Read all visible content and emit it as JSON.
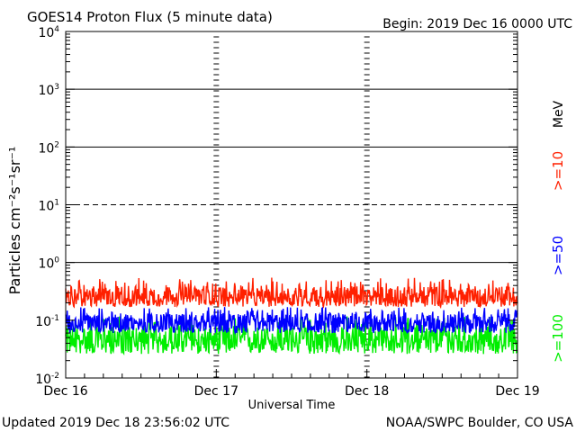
{
  "chart_data": {
    "type": "line",
    "title": "GOES14 Proton Flux (5 minute data)",
    "begin_label": "Begin: 2019 Dec 16 0000 UTC",
    "xlabel": "Universal Time",
    "ylabel": "Particles cm⁻²s⁻¹sr⁻¹",
    "y_scale": "log",
    "ylim": [
      0.01,
      10000
    ],
    "y_ticks": [
      {
        "value": 10000,
        "base": "10",
        "exp": "4"
      },
      {
        "value": 1000,
        "base": "10",
        "exp": "3"
      },
      {
        "value": 100,
        "base": "10",
        "exp": "2"
      },
      {
        "value": 10,
        "base": "10",
        "exp": "1"
      },
      {
        "value": 1,
        "base": "10",
        "exp": "0"
      },
      {
        "value": 0.1,
        "base": "10",
        "exp": "-1"
      },
      {
        "value": 0.01,
        "base": "10",
        "exp": "-2"
      }
    ],
    "x_ticks": [
      "Dec 16",
      "Dec 17",
      "Dec 18",
      "Dec 19"
    ],
    "xlim_days": [
      0,
      3
    ],
    "threshold_lines": [
      {
        "value": 1000,
        "style": "solid"
      },
      {
        "value": 100,
        "style": "solid"
      },
      {
        "value": 10,
        "style": "dashed"
      },
      {
        "value": 1,
        "style": "solid"
      }
    ],
    "energy_unit": "MeV",
    "series": [
      {
        "name": ">=10",
        "color": "#ff2000",
        "baseline": 0.25,
        "low": 0.17,
        "high": 0.55
      },
      {
        "name": ">=50",
        "color": "#0000ff",
        "baseline": 0.09,
        "low": 0.06,
        "high": 0.17
      },
      {
        "name": ">=100",
        "color": "#00ee00",
        "baseline": 0.045,
        "low": 0.026,
        "high": 0.12
      }
    ]
  },
  "footer": {
    "updated": "Updated 2019 Dec 18 23:56:02 UTC",
    "source": "NOAA/SWPC Boulder, CO USA"
  }
}
